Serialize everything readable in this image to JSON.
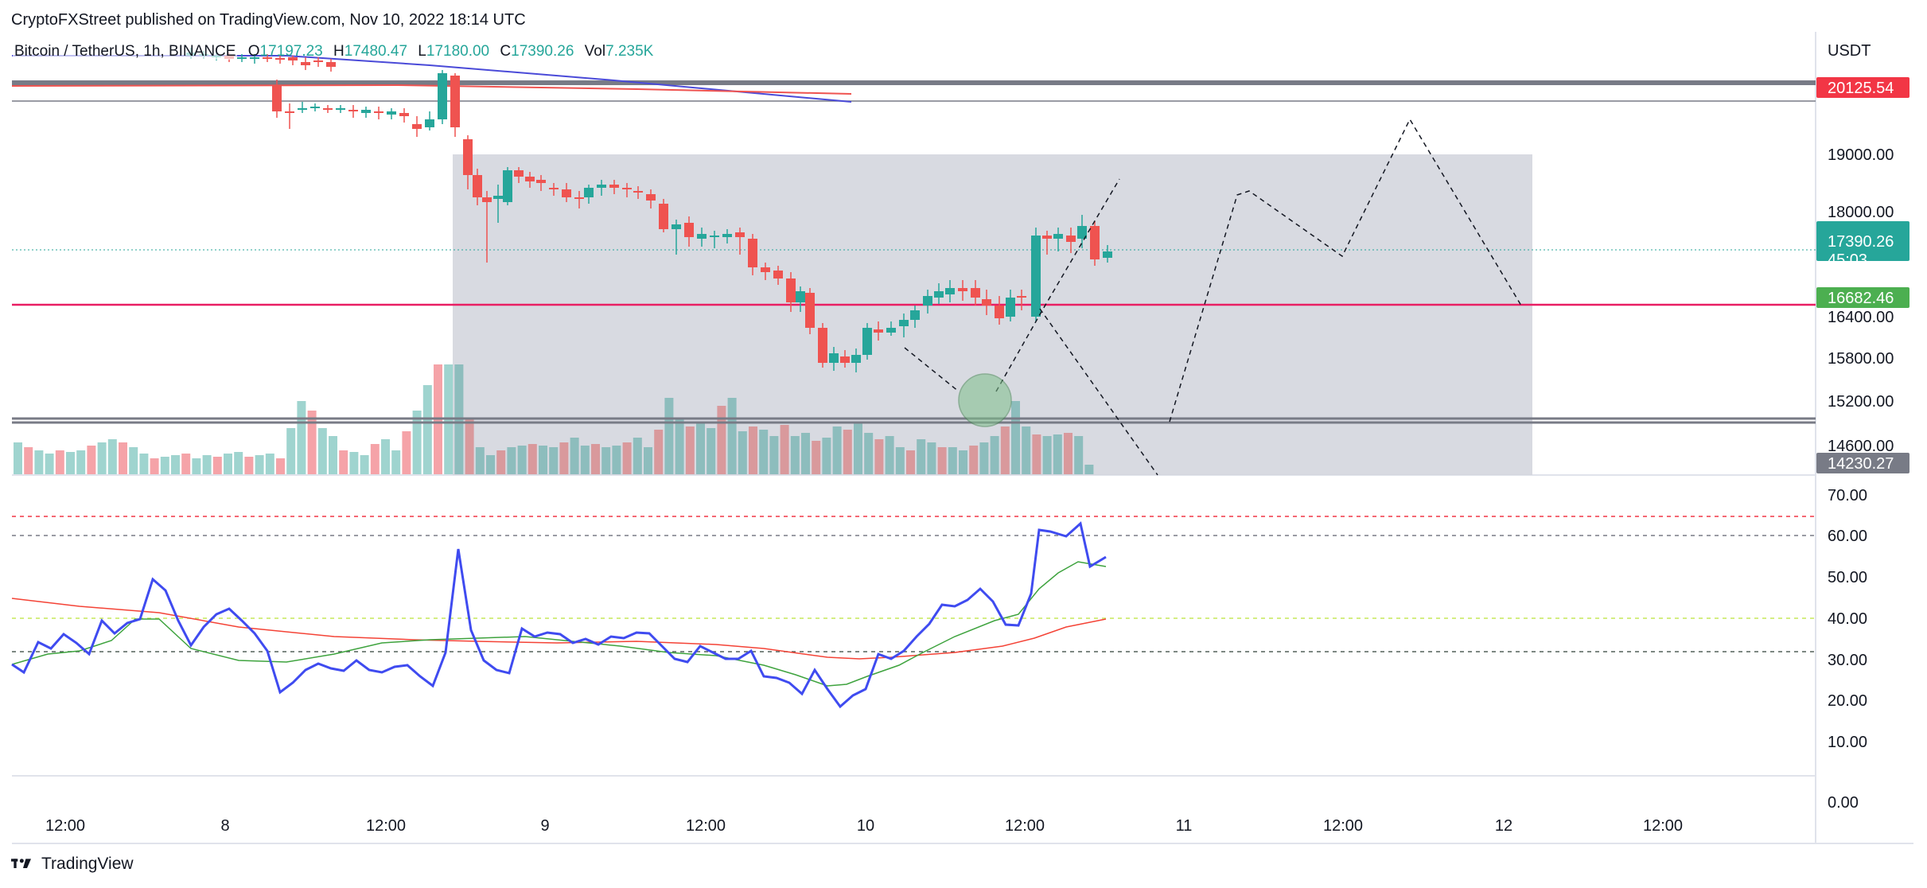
{
  "header": {
    "published_line": "CryptoFXStreet published on TradingView.com, Nov 10, 2022 18:14 UTC"
  },
  "legend": {
    "symbol": "Bitcoin / TetherUS, 1h, BINANCE",
    "open_label": "O",
    "open": "17197.23",
    "high_label": "H",
    "high": "17480.47",
    "low_label": "L",
    "low": "17180.00",
    "close_label": "C",
    "close": "17390.26",
    "vol_label": "Vol",
    "vol": "7.235K"
  },
  "price_axis": {
    "currency": "USDT",
    "ticks": [
      "19000.00",
      "18000.00",
      "16400.00",
      "15800.00",
      "15200.00",
      "14600.00"
    ],
    "tags": [
      {
        "value": "20125.54",
        "color": "#f23645"
      },
      {
        "value": "17390.26",
        "color": "#26a69a",
        "sub": "45:03"
      },
      {
        "value": "16682.46",
        "color": "#4caf50"
      },
      {
        "value": "14230.27",
        "color": "#787b86"
      }
    ]
  },
  "rsi_axis": {
    "ticks": [
      "70.00",
      "60.00",
      "50.00",
      "40.00",
      "30.00",
      "20.00",
      "10.00",
      "0.00"
    ]
  },
  "time_axis": {
    "labels": [
      "12:00",
      "8",
      "12:00",
      "9",
      "12:00",
      "10",
      "12:00",
      "11",
      "12:00",
      "12",
      "12:00"
    ]
  },
  "footer": {
    "brand": "TradingView"
  },
  "colors": {
    "up": "#26a69a",
    "down": "#ef5350",
    "rsi": "#3f4bf0",
    "rsi_ma_green": "#3ea33e",
    "rsi_ma_red": "#f44336",
    "support_line": "#e91e63",
    "zone": "#d1d4dc"
  },
  "chart_data": {
    "type": "candlestick",
    "timeframe": "1h",
    "last_price": 17390.26,
    "levels": [
      20125.54,
      16682.46,
      14230.27
    ],
    "volume_last": "7.235K",
    "rsi_last": 54,
    "rsi_ma_last": 52,
    "rsi_slow_last": 40
  }
}
